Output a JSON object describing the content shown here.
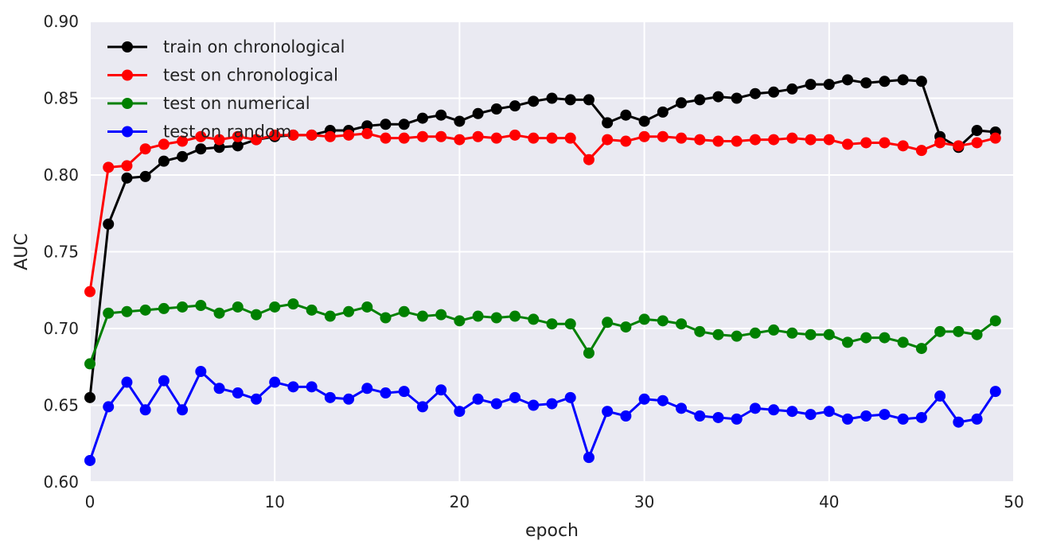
{
  "chart_data": {
    "type": "line",
    "title": "",
    "xlabel": "epoch",
    "ylabel": "AUC",
    "xlim": [
      0,
      50
    ],
    "ylim": [
      0.6,
      0.9
    ],
    "xticks": [
      0,
      10,
      20,
      30,
      40,
      50
    ],
    "xtick_labels": [
      "0",
      "10",
      "20",
      "30",
      "40",
      "50"
    ],
    "yticks": [
      0.6,
      0.65,
      0.7,
      0.75,
      0.8,
      0.85,
      0.9
    ],
    "ytick_labels": [
      "0.60",
      "0.65",
      "0.70",
      "0.75",
      "0.80",
      "0.85",
      "0.90"
    ],
    "grid": true,
    "legend_position": "top-left",
    "background": "#eaeaf2",
    "x": [
      0,
      1,
      2,
      3,
      4,
      5,
      6,
      7,
      8,
      9,
      10,
      11,
      12,
      13,
      14,
      15,
      16,
      17,
      18,
      19,
      20,
      21,
      22,
      23,
      24,
      25,
      26,
      27,
      28,
      29,
      30,
      31,
      32,
      33,
      34,
      35,
      36,
      37,
      38,
      39,
      40,
      41,
      42,
      43,
      44,
      45,
      46,
      47,
      48,
      49
    ],
    "series": [
      {
        "name": "train on chronological",
        "color": "#000000",
        "values": [
          0.655,
          0.768,
          0.798,
          0.799,
          0.809,
          0.812,
          0.817,
          0.818,
          0.819,
          0.823,
          0.825,
          0.826,
          0.826,
          0.829,
          0.829,
          0.832,
          0.833,
          0.833,
          0.837,
          0.839,
          0.835,
          0.84,
          0.843,
          0.845,
          0.848,
          0.85,
          0.849,
          0.849,
          0.834,
          0.839,
          0.835,
          0.841,
          0.847,
          0.849,
          0.851,
          0.85,
          0.853,
          0.854,
          0.856,
          0.859,
          0.859,
          0.862,
          0.86,
          0.861,
          0.862,
          0.861,
          0.825,
          0.818,
          0.829,
          0.828
        ]
      },
      {
        "name": "test on chronological",
        "color": "#ff0000",
        "values": [
          0.724,
          0.805,
          0.806,
          0.817,
          0.82,
          0.822,
          0.825,
          0.823,
          0.825,
          0.823,
          0.826,
          0.826,
          0.826,
          0.825,
          0.826,
          0.827,
          0.824,
          0.824,
          0.825,
          0.825,
          0.823,
          0.825,
          0.824,
          0.826,
          0.824,
          0.824,
          0.824,
          0.81,
          0.823,
          0.822,
          0.825,
          0.825,
          0.824,
          0.823,
          0.822,
          0.822,
          0.823,
          0.823,
          0.824,
          0.823,
          0.823,
          0.82,
          0.821,
          0.821,
          0.819,
          0.816,
          0.821,
          0.819,
          0.821,
          0.824
        ]
      },
      {
        "name": "test on numerical",
        "color": "#008000",
        "values": [
          0.677,
          0.71,
          0.711,
          0.712,
          0.713,
          0.714,
          0.715,
          0.71,
          0.714,
          0.709,
          0.714,
          0.716,
          0.712,
          0.708,
          0.711,
          0.714,
          0.707,
          0.711,
          0.708,
          0.709,
          0.705,
          0.708,
          0.707,
          0.708,
          0.706,
          0.703,
          0.703,
          0.684,
          0.704,
          0.701,
          0.706,
          0.705,
          0.703,
          0.698,
          0.696,
          0.695,
          0.697,
          0.699,
          0.697,
          0.696,
          0.696,
          0.691,
          0.694,
          0.694,
          0.691,
          0.687,
          0.698,
          0.698,
          0.696,
          0.705
        ]
      },
      {
        "name": "test on random",
        "color": "#0000ff",
        "values": [
          0.614,
          0.649,
          0.665,
          0.647,
          0.666,
          0.647,
          0.672,
          0.661,
          0.658,
          0.654,
          0.665,
          0.662,
          0.662,
          0.655,
          0.654,
          0.661,
          0.658,
          0.659,
          0.649,
          0.66,
          0.646,
          0.654,
          0.651,
          0.655,
          0.65,
          0.651,
          0.655,
          0.616,
          0.646,
          0.643,
          0.654,
          0.653,
          0.648,
          0.643,
          0.642,
          0.641,
          0.648,
          0.647,
          0.646,
          0.644,
          0.646,
          0.641,
          0.643,
          0.644,
          0.641,
          0.642,
          0.656,
          0.639,
          0.641,
          0.659
        ]
      }
    ]
  }
}
